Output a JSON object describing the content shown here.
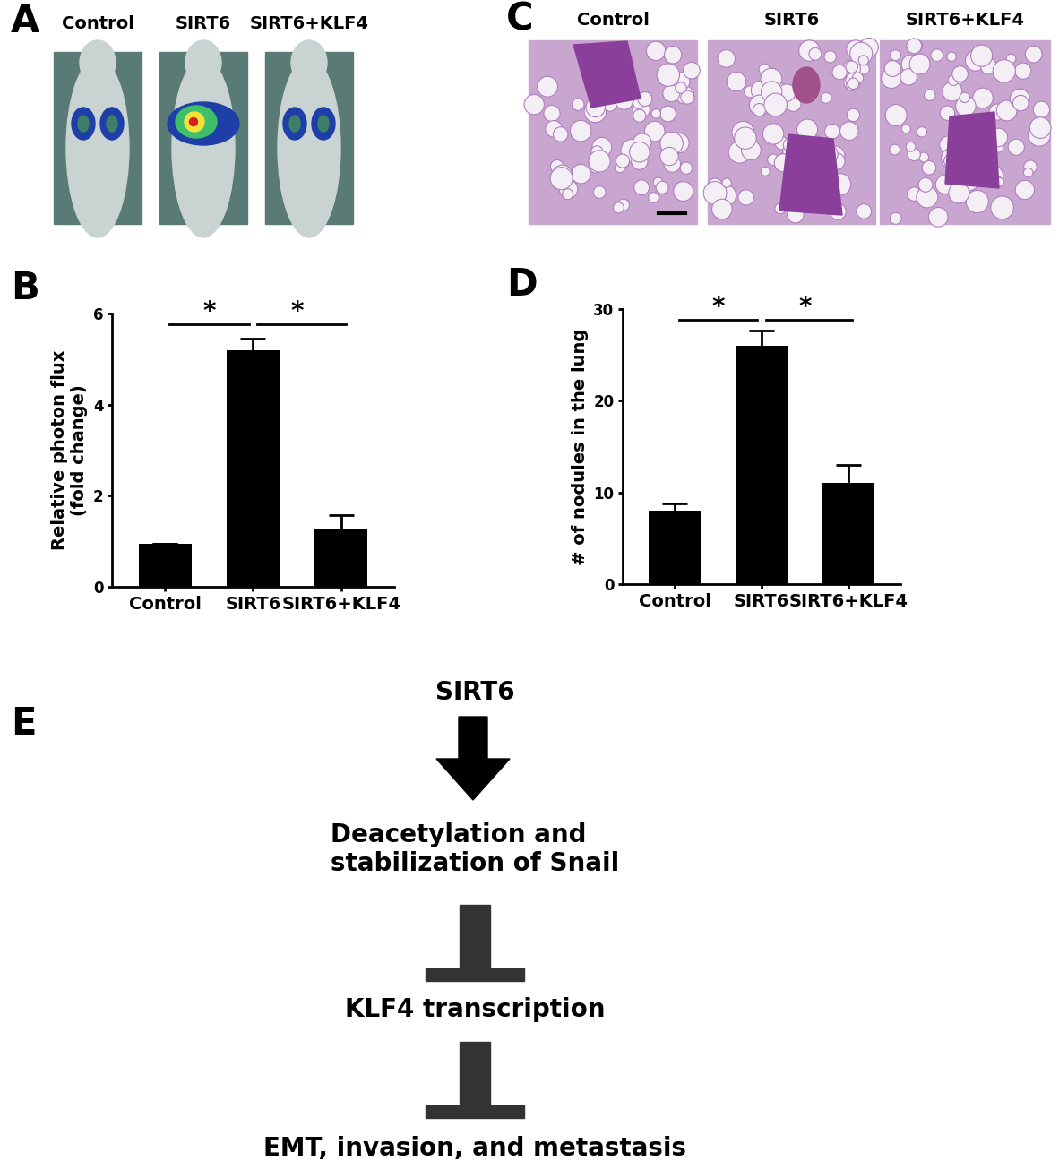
{
  "chart_data": [
    {
      "type": "bar",
      "categories": [
        "Control",
        "SIRT6",
        "SIRT6+KLF4"
      ],
      "values": [
        0.95,
        5.2,
        1.27
      ],
      "errors": [
        0,
        0.25,
        0.3
      ],
      "color": "#000000",
      "ylabel": "Relative photon flux\n(fold change)",
      "ylim": [
        0,
        6
      ],
      "yticks": [
        0,
        2,
        4,
        6
      ],
      "annotations": [
        {
          "text": "B"
        },
        {
          "text": "*",
          "from": "Control",
          "to": "SIRT6"
        },
        {
          "text": "*",
          "from": "SIRT6",
          "to": "SIRT6+KLF4"
        }
      ]
    },
    {
      "type": "bar",
      "categories": [
        "Control",
        "SIRT6",
        "SIRT6+KLF4"
      ],
      "values": [
        8,
        26,
        11
      ],
      "errors": [
        0.8,
        1.7,
        2.0
      ],
      "color": "#000000",
      "ylabel": "# of nodules in the lung",
      "ylim": [
        0,
        30
      ],
      "yticks": [
        0,
        10,
        20,
        30
      ],
      "annotations": [
        {
          "text": "D"
        },
        {
          "text": "*",
          "from": "Control",
          "to": "SIRT6"
        },
        {
          "text": "*",
          "from": "SIRT6",
          "to": "SIRT6+KLF4"
        }
      ]
    }
  ],
  "imaging": {
    "panel": "A",
    "labels": [
      "Control",
      "SIRT6",
      "SIRT6+KLF4"
    ]
  },
  "histology": {
    "panel": "C",
    "labels": [
      "Control",
      "SIRT6",
      "SIRT6+KLF4"
    ]
  },
  "diagram": {
    "panel": "E",
    "nodes": [
      "SIRT6",
      "Deacetylation and\nstabilization of Snail",
      "KLF4 transcription",
      "EMT, invasion, and metastasis"
    ],
    "edges": [
      {
        "from": 0,
        "to": 1,
        "type": "activation"
      },
      {
        "from": 1,
        "to": 2,
        "type": "inhibition"
      },
      {
        "from": 2,
        "to": 3,
        "type": "inhibition"
      }
    ]
  }
}
